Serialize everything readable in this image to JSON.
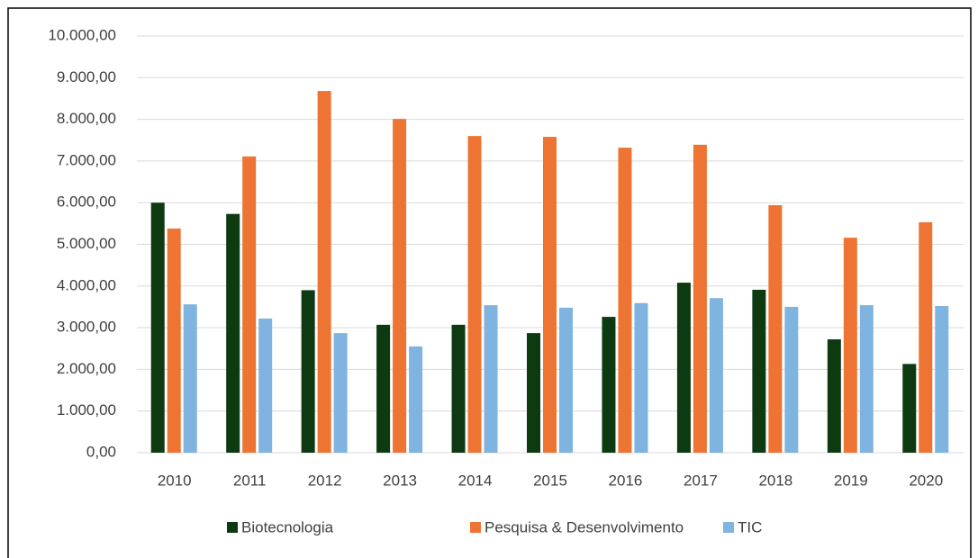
{
  "chart_data": {
    "type": "bar",
    "categories": [
      "2010",
      "2011",
      "2012",
      "2013",
      "2014",
      "2015",
      "2016",
      "2017",
      "2018",
      "2019",
      "2020"
    ],
    "series": [
      {
        "name": "Biotecnologia",
        "color": "#0e3a12",
        "values": [
          6000,
          5730,
          3900,
          3070,
          3070,
          2870,
          3260,
          4080,
          3910,
          2720,
          2130
        ]
      },
      {
        "name": "Pesquisa & Desenvolvimento",
        "color": "#ed7432",
        "values": [
          5380,
          7110,
          8680,
          8010,
          7600,
          7580,
          7320,
          7390,
          5940,
          5160,
          5530
        ]
      },
      {
        "name": "TIC",
        "color": "#7fb3e0",
        "values": [
          3560,
          3220,
          2870,
          2550,
          3540,
          3480,
          3590,
          3710,
          3500,
          3540,
          3520
        ]
      }
    ],
    "ylim": [
      0,
      10000
    ],
    "yticks": [
      {
        "value": 0,
        "label": "0,00"
      },
      {
        "value": 1000,
        "label": "1.000,00"
      },
      {
        "value": 2000,
        "label": "2.000,00"
      },
      {
        "value": 3000,
        "label": "3.000,00"
      },
      {
        "value": 4000,
        "label": "4.000,00"
      },
      {
        "value": 5000,
        "label": "5.000,00"
      },
      {
        "value": 6000,
        "label": "6.000,00"
      },
      {
        "value": 7000,
        "label": "7.000,00"
      },
      {
        "value": 8000,
        "label": "8.000,00"
      },
      {
        "value": 9000,
        "label": "9.000,00"
      },
      {
        "value": 10000,
        "label": "10.000,00"
      }
    ],
    "grid": true,
    "legend": "bottom"
  }
}
